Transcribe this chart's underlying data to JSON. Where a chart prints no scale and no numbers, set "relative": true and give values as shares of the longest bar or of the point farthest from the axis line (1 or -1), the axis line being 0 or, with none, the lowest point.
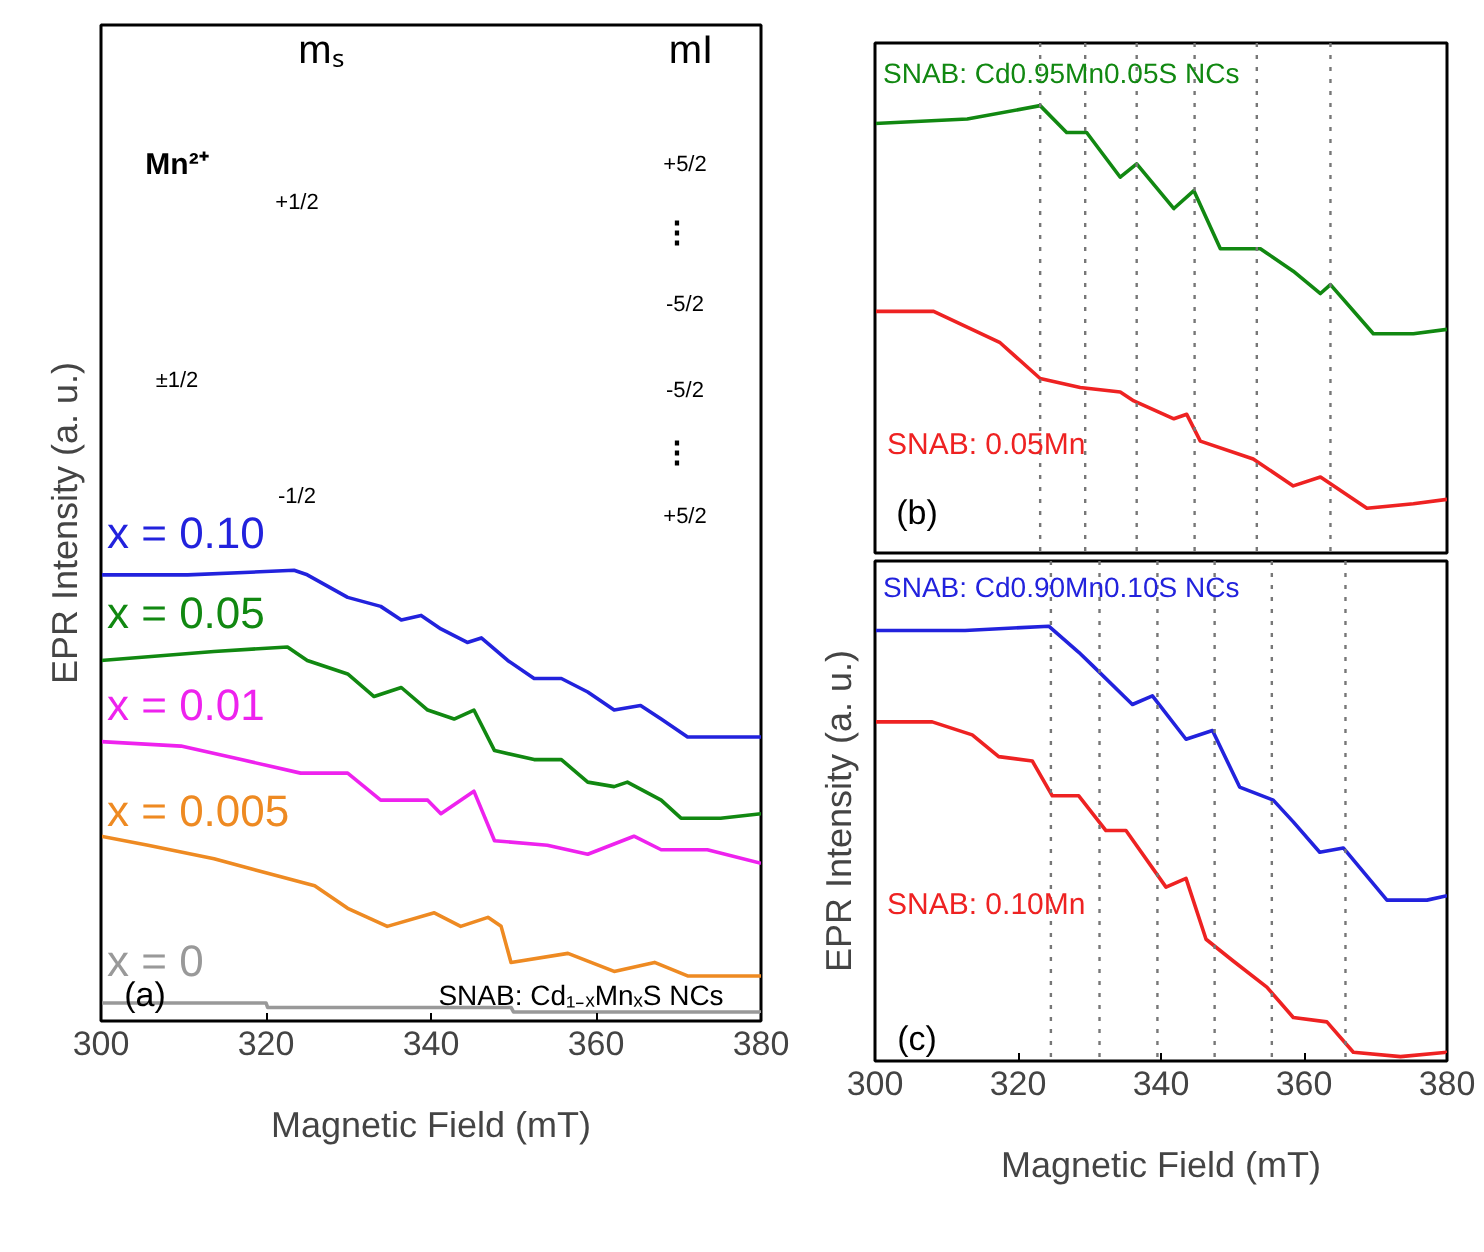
{
  "chart_data": [
    {
      "type": "line",
      "xlabel": "Magnetic Field (mT)",
      "ylabel": "EPR Intensity (a. u.)",
      "xlim": [
        300,
        380
      ],
      "xticks": [
        300,
        320,
        340,
        360,
        380
      ],
      "tick_labels": "x",
      "relative": true,
      "series": [
        {
          "name": "x = 0.10",
          "color": "#2222dd",
          "x": [
            300,
            310.5,
            323.4,
            325,
            329.9,
            333.9,
            336.4,
            338.8,
            341.2,
            344.4,
            346.1,
            349.3,
            352.5,
            355.8,
            359,
            362.2,
            365.4,
            367.9,
            371.1,
            375.1,
            380
          ],
          "values": [
            0.99,
            0.99,
            1.0,
            0.99,
            0.94,
            0.92,
            0.89,
            0.9,
            0.87,
            0.84,
            0.85,
            0.8,
            0.76,
            0.76,
            0.73,
            0.69,
            0.7,
            0.67,
            0.63,
            0.63,
            0.63
          ]
        },
        {
          "name": "x = 0.05",
          "color": "#118811",
          "x": [
            300,
            313.7,
            322.6,
            325,
            329.9,
            333.1,
            336.4,
            339.6,
            342.8,
            345.2,
            347.7,
            352.5,
            355.8,
            359,
            362.2,
            363.8,
            367.9,
            370.3,
            375.1,
            380
          ],
          "values": [
            0.8,
            0.82,
            0.83,
            0.8,
            0.77,
            0.72,
            0.74,
            0.69,
            0.67,
            0.69,
            0.6,
            0.58,
            0.58,
            0.53,
            0.52,
            0.53,
            0.49,
            0.45,
            0.45,
            0.46
          ]
        },
        {
          "name": "x = 0.01",
          "color": "#ee22ee",
          "x": [
            300,
            309.7,
            317,
            324.2,
            329.9,
            333.9,
            339.6,
            341.2,
            345.2,
            347.7,
            354.1,
            359,
            364.6,
            367.9,
            373.5,
            380
          ],
          "values": [
            0.62,
            0.61,
            0.58,
            0.55,
            0.55,
            0.49,
            0.49,
            0.46,
            0.51,
            0.4,
            0.39,
            0.37,
            0.41,
            0.38,
            0.38,
            0.35
          ]
        },
        {
          "name": "x = 0.005",
          "color": "#ee8a22",
          "x": [
            300,
            305.7,
            313.7,
            321.8,
            325.9,
            329.9,
            334.7,
            340.4,
            343.6,
            346.9,
            348.5,
            349.7,
            356.6,
            362.2,
            367.1,
            371.1,
            380
          ],
          "values": [
            0.41,
            0.39,
            0.36,
            0.32,
            0.3,
            0.25,
            0.21,
            0.24,
            0.21,
            0.23,
            0.21,
            0.13,
            0.15,
            0.11,
            0.13,
            0.1,
            0.1
          ]
        },
        {
          "name": "x = 0",
          "color": "#999999",
          "x": [
            300,
            320,
            320.2,
            349.7,
            350,
            380
          ],
          "values": [
            0.04,
            0.04,
            0.03,
            0.03,
            0.02,
            0.02
          ]
        }
      ],
      "annotations": [
        "mₛ",
        "mI",
        "Mn²⁺",
        "+1/2",
        "±1/2",
        "-1/2",
        "+5/2",
        "⋮",
        "-5/2",
        "-5/2",
        "⋮",
        "+5/2",
        "(a)",
        "SNAB: Cd₁₋ₓMnₓS NCs"
      ]
    },
    {
      "type": "line",
      "xlim": [
        300,
        380
      ],
      "xticks": [
        300,
        320,
        340,
        360,
        380
      ],
      "tick_labels": false,
      "relative": true,
      "series": [
        {
          "name": "SNAB: Cd0.95Mn0.05S NCs",
          "color": "#118811",
          "x": [
            300,
            312.9,
            323.1,
            326.8,
            329.6,
            334.3,
            336.6,
            341.8,
            344.6,
            348.3,
            353.9,
            358.5,
            362.3,
            363.7,
            369.7,
            375.3,
            380
          ],
          "values": [
            0.96,
            0.97,
            1.0,
            0.94,
            0.94,
            0.84,
            0.87,
            0.77,
            0.81,
            0.68,
            0.68,
            0.63,
            0.58,
            0.6,
            0.49,
            0.49,
            0.5
          ]
        },
        {
          "name": "SNAB: 0.05Mn",
          "color": "#ee2222",
          "x": [
            300,
            308.2,
            317.5,
            323.1,
            328.7,
            334.3,
            336.2,
            341.8,
            343.6,
            345.5,
            352.9,
            358.5,
            362.3,
            368.8,
            375.3,
            380
          ],
          "values": [
            0.54,
            0.54,
            0.47,
            0.39,
            0.37,
            0.36,
            0.34,
            0.3,
            0.31,
            0.25,
            0.21,
            0.15,
            0.17,
            0.1,
            0.11,
            0.12
          ]
        }
      ],
      "ref_lines": [
        {
          "axis": "x",
          "value": 323.1,
          "color": "#777777",
          "line_style": "dotted"
        },
        {
          "axis": "x",
          "value": 329.4,
          "color": "#777777",
          "line_style": "dotted"
        },
        {
          "axis": "x",
          "value": 336.6,
          "color": "#777777",
          "line_style": "dotted"
        },
        {
          "axis": "x",
          "value": 344.7,
          "color": "#777777",
          "line_style": "dotted"
        },
        {
          "axis": "x",
          "value": 353.4,
          "color": "#777777",
          "line_style": "dotted"
        },
        {
          "axis": "x",
          "value": 363.7,
          "color": "#777777",
          "line_style": "dotted"
        }
      ],
      "annotations": [
        "(b)"
      ]
    },
    {
      "type": "line",
      "xlabel": "Magnetic Field (mT)",
      "ylabel": "EPR Intensity (a. u.)",
      "xlim": [
        300,
        380
      ],
      "xticks": [
        300,
        320,
        340,
        360,
        380
      ],
      "tick_labels": "x",
      "relative": true,
      "series": [
        {
          "name": "SNAB: Cd0.90Mn0.10S NCs",
          "color": "#2222dd",
          "x": [
            300,
            312.6,
            324.3,
            328.5,
            330.4,
            336,
            338.8,
            343.5,
            347.2,
            351,
            355.7,
            358.5,
            362.2,
            365.5,
            371.6,
            377.2,
            380
          ],
          "values": [
            0.99,
            0.99,
            1.0,
            0.94,
            0.91,
            0.82,
            0.84,
            0.74,
            0.76,
            0.63,
            0.6,
            0.55,
            0.48,
            0.49,
            0.37,
            0.37,
            0.38
          ]
        },
        {
          "name": "SNAB: 0.10Mn",
          "color": "#ee2222",
          "x": [
            300,
            308,
            313.6,
            317.3,
            322,
            324.8,
            328.5,
            332.3,
            335.1,
            340.7,
            343.5,
            346.3,
            350.1,
            354.8,
            358.5,
            363.2,
            366.9,
            373.5,
            380
          ],
          "values": [
            0.78,
            0.78,
            0.75,
            0.7,
            0.69,
            0.61,
            0.61,
            0.53,
            0.53,
            0.4,
            0.42,
            0.28,
            0.23,
            0.17,
            0.1,
            0.09,
            0.02,
            0.01,
            0.02
          ]
        }
      ],
      "ref_lines": [
        {
          "axis": "x",
          "value": 324.6,
          "color": "#777777",
          "line_style": "dotted"
        },
        {
          "axis": "x",
          "value": 331.4,
          "color": "#777777",
          "line_style": "dotted"
        },
        {
          "axis": "x",
          "value": 339.5,
          "color": "#777777",
          "line_style": "dotted"
        },
        {
          "axis": "x",
          "value": 347.5,
          "color": "#777777",
          "line_style": "dotted"
        },
        {
          "axis": "x",
          "value": 355.5,
          "color": "#777777",
          "line_style": "dotted"
        },
        {
          "axis": "x",
          "value": 365.8,
          "color": "#777777",
          "line_style": "dotted"
        }
      ],
      "annotations": [
        "(c)"
      ]
    }
  ]
}
